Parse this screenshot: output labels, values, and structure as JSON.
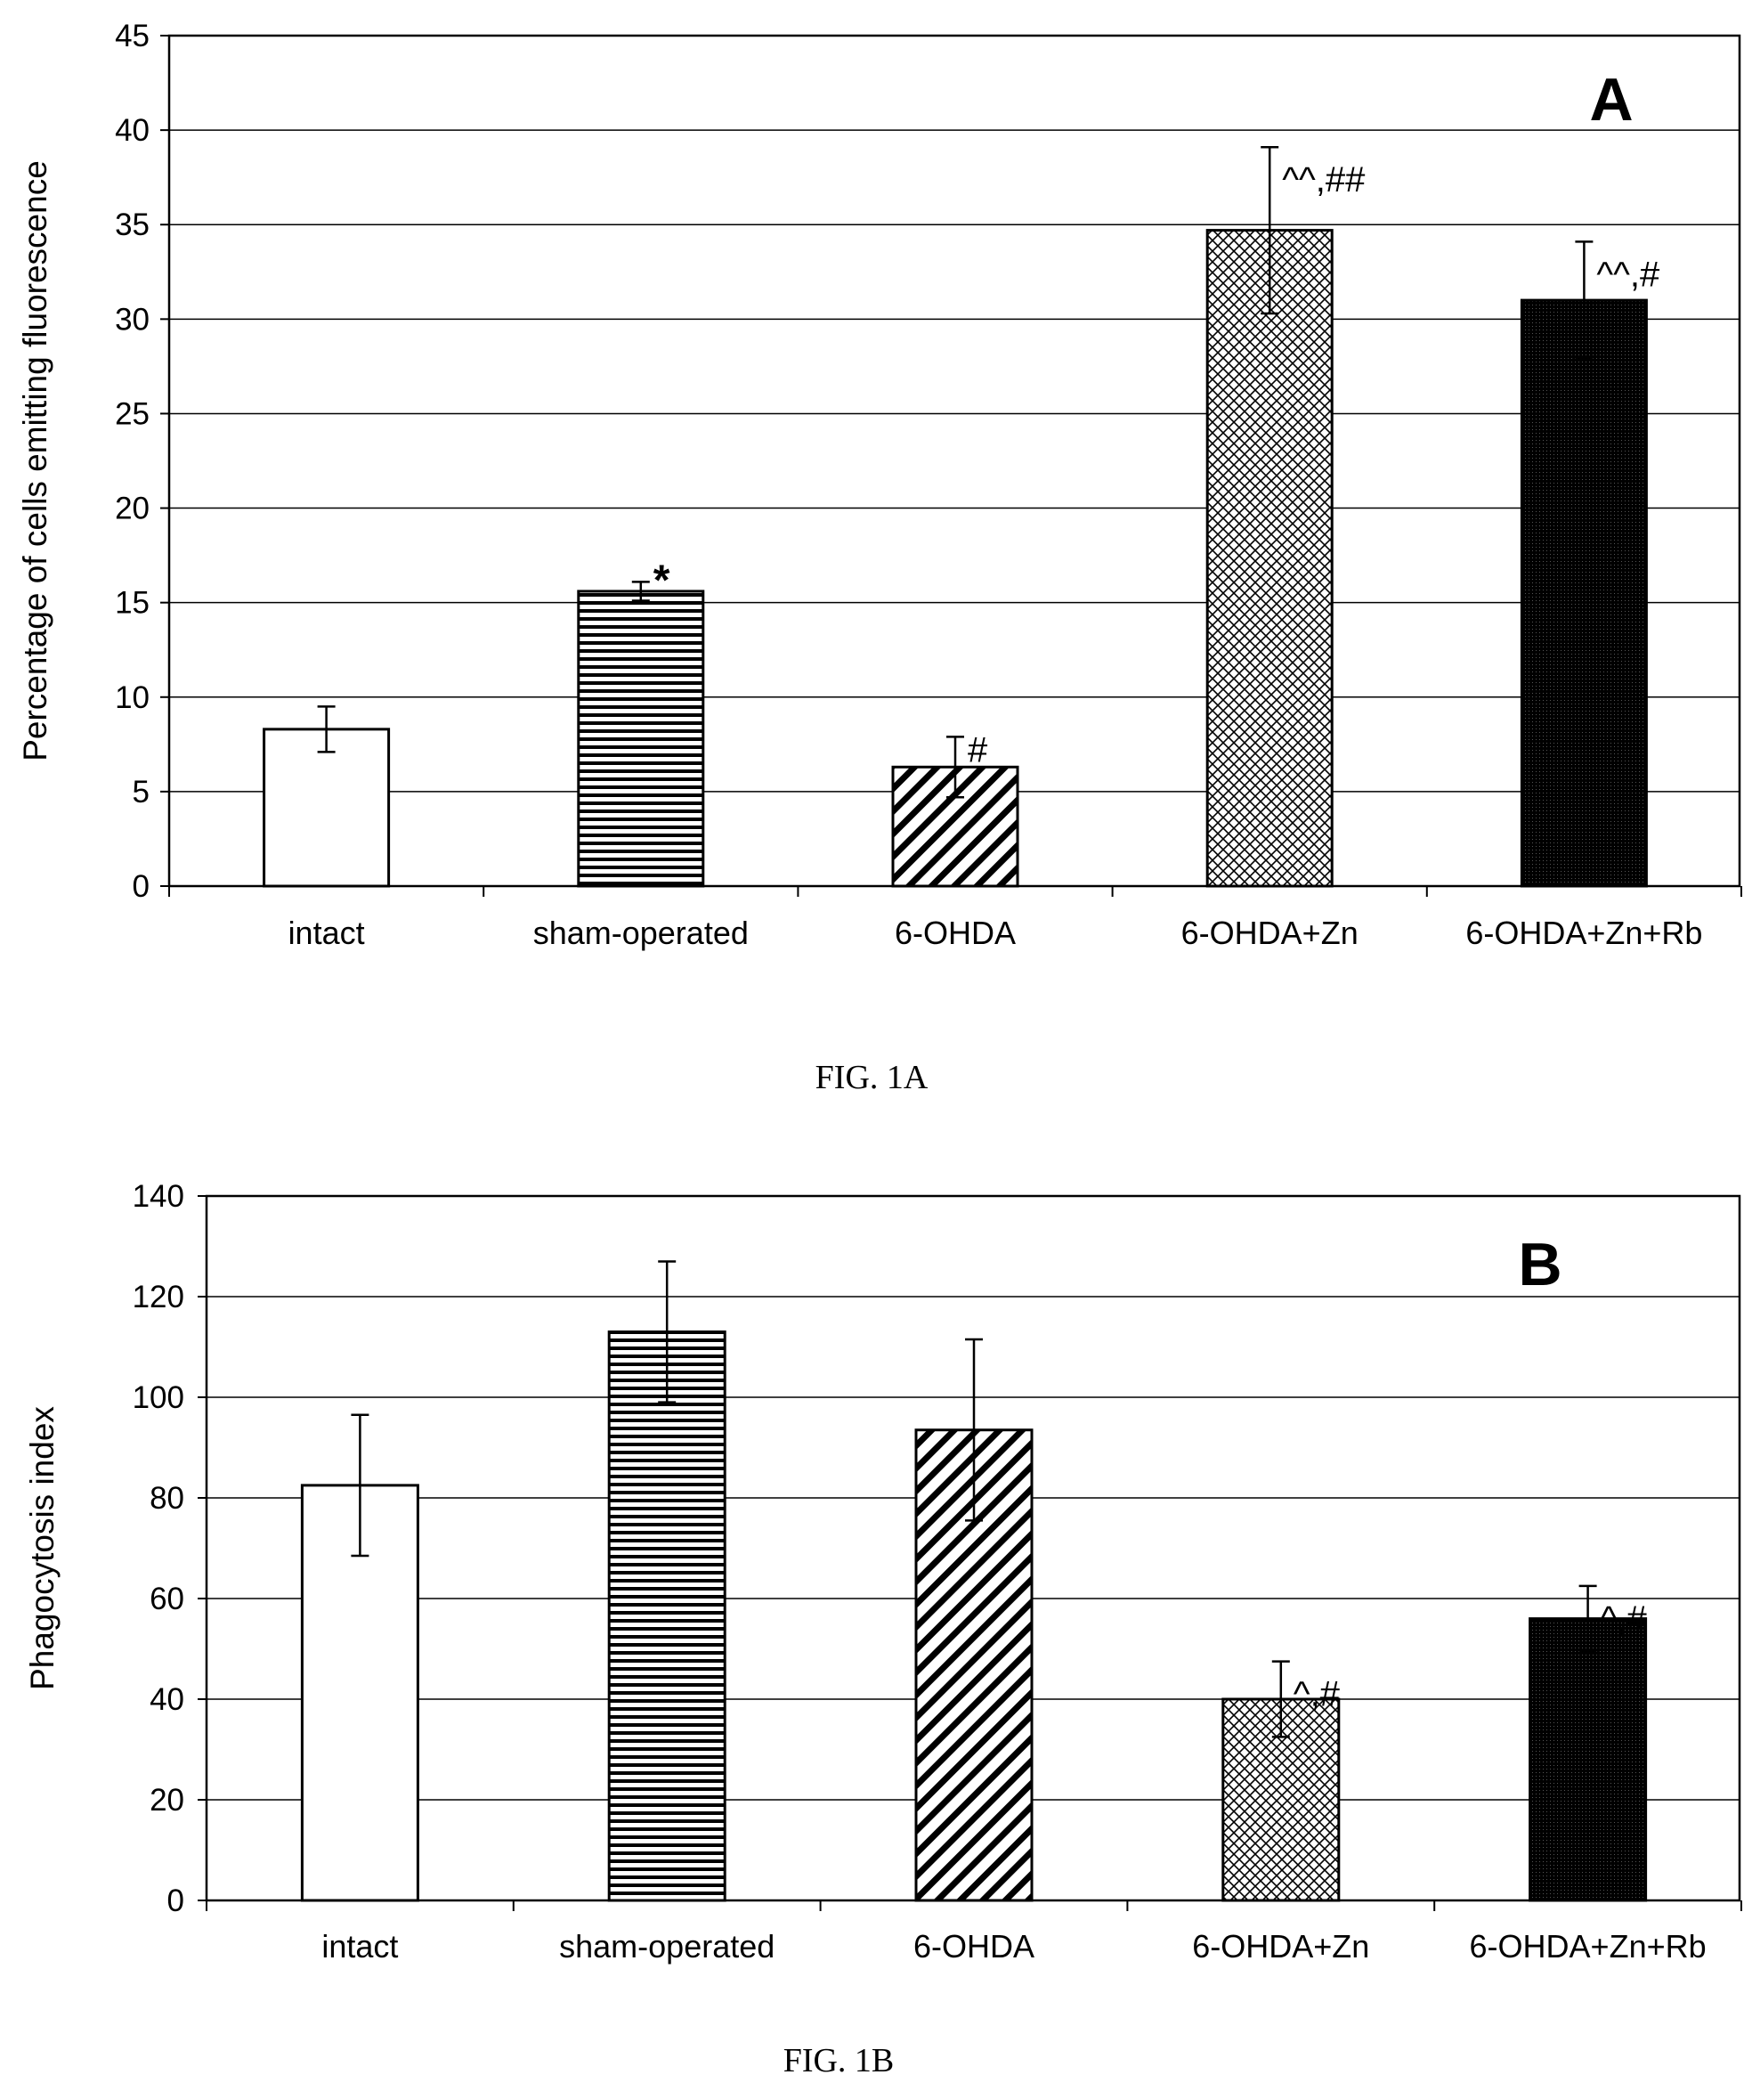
{
  "chart_data": [
    {
      "type": "bar",
      "panel_label": "A",
      "caption": "FIG. 1A",
      "xlabel": "",
      "ylabel": "Percentage of cells emitting fluorescence",
      "categories": [
        "intact",
        "sham-operated",
        "6-OHDA",
        "6-OHDA+Zn",
        "6-OHDA+Zn+Rb"
      ],
      "values": [
        8.3,
        15.6,
        6.3,
        34.7,
        31.0
      ],
      "errors": [
        1.2,
        0.5,
        1.6,
        4.4,
        3.1
      ],
      "annotations": [
        "",
        "*",
        "#",
        "^^,##",
        "^^,#"
      ],
      "patterns": [
        "white",
        "hlines",
        "diag",
        "cross",
        "dense"
      ],
      "ylim": [
        0,
        45
      ],
      "yticks": [
        0,
        5,
        10,
        15,
        20,
        25,
        30,
        35,
        40,
        45
      ],
      "grid": true,
      "legend": "none"
    },
    {
      "type": "bar",
      "panel_label": "B",
      "caption": "FIG. 1B",
      "xlabel": "",
      "ylabel": "Phagocytosis index",
      "categories": [
        "intact",
        "sham-operated",
        "6-OHDA",
        "6-OHDA+Zn",
        "6-OHDA+Zn+Rb"
      ],
      "values": [
        82.5,
        113,
        93.5,
        40,
        56
      ],
      "errors": [
        14,
        14,
        18,
        7.5,
        6.5
      ],
      "annotations": [
        "",
        "",
        "",
        "^,#",
        "^,#"
      ],
      "patterns": [
        "white",
        "hlines",
        "diag",
        "cross",
        "dense"
      ],
      "ylim": [
        0,
        140
      ],
      "yticks": [
        0,
        20,
        40,
        60,
        80,
        100,
        120,
        140
      ],
      "grid": true,
      "legend": "none"
    }
  ]
}
